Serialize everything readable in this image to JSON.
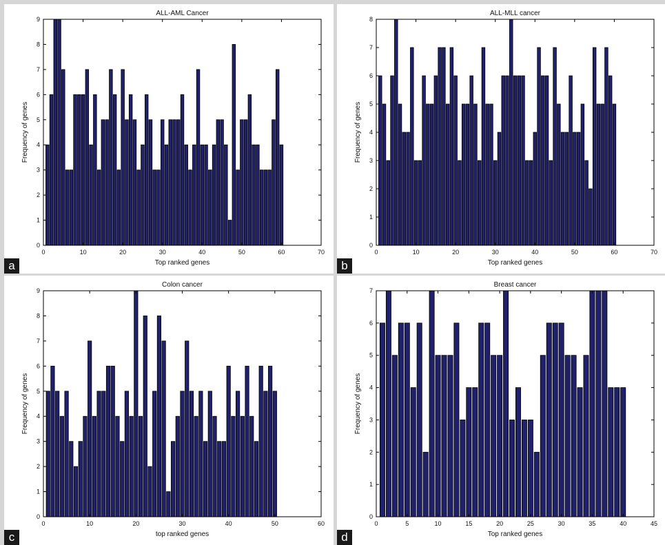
{
  "colors": {
    "bar_fill": "#20206b",
    "bar_stroke": "#000000",
    "background": "#ffffff"
  },
  "chart_data": [
    {
      "panel_label": "a",
      "type": "bar",
      "title": "ALL-AML Cancer",
      "xlabel": "Top ranked genes",
      "ylabel": "Frequency of genes",
      "xlim": [
        0,
        70
      ],
      "ylim": [
        0,
        9
      ],
      "xticks": [
        0,
        10,
        20,
        30,
        40,
        50,
        60,
        70
      ],
      "yticks": [
        0,
        1,
        2,
        3,
        4,
        5,
        6,
        7,
        8,
        9
      ],
      "x": [
        1,
        2,
        3,
        4,
        5,
        6,
        7,
        8,
        9,
        10,
        11,
        12,
        13,
        14,
        15,
        16,
        17,
        18,
        19,
        20,
        21,
        22,
        23,
        24,
        25,
        26,
        27,
        28,
        29,
        30,
        31,
        32,
        33,
        34,
        35,
        36,
        37,
        38,
        39,
        40,
        41,
        42,
        43,
        44,
        45,
        46,
        47,
        48,
        49,
        50,
        51,
        52,
        53,
        54,
        55,
        56,
        57,
        58,
        59,
        60
      ],
      "values": [
        4,
        6,
        9,
        9,
        7,
        3,
        3,
        6,
        6,
        6,
        7,
        4,
        6,
        3,
        5,
        5,
        7,
        6,
        3,
        7,
        5,
        6,
        5,
        3,
        4,
        6,
        5,
        3,
        3,
        5,
        4,
        5,
        5,
        5,
        6,
        4,
        3,
        4,
        7,
        4,
        4,
        3,
        4,
        5,
        5,
        4,
        1,
        8,
        3,
        5,
        5,
        6,
        4,
        4,
        3,
        3,
        3,
        5,
        7,
        4
      ],
      "grid": false
    },
    {
      "panel_label": "b",
      "type": "bar",
      "title": "ALL-MLL cancer",
      "xlabel": "Top ranked genes",
      "ylabel": "Frequency of genes",
      "xlim": [
        0,
        70
      ],
      "ylim": [
        0,
        8
      ],
      "xticks": [
        0,
        10,
        20,
        30,
        40,
        50,
        60,
        70
      ],
      "yticks": [
        0,
        1,
        2,
        3,
        4,
        5,
        6,
        7,
        8
      ],
      "x": [
        1,
        2,
        3,
        4,
        5,
        6,
        7,
        8,
        9,
        10,
        11,
        12,
        13,
        14,
        15,
        16,
        17,
        18,
        19,
        20,
        21,
        22,
        23,
        24,
        25,
        26,
        27,
        28,
        29,
        30,
        31,
        32,
        33,
        34,
        35,
        36,
        37,
        38,
        39,
        40,
        41,
        42,
        43,
        44,
        45,
        46,
        47,
        48,
        49,
        50,
        51,
        52,
        53,
        54,
        55,
        56,
        57,
        58,
        59,
        60
      ],
      "values": [
        6,
        5,
        3,
        6,
        8,
        5,
        4,
        4,
        7,
        3,
        3,
        6,
        5,
        5,
        6,
        7,
        7,
        5,
        7,
        6,
        3,
        5,
        5,
        6,
        5,
        3,
        7,
        5,
        5,
        3,
        4,
        6,
        6,
        8,
        6,
        6,
        6,
        3,
        3,
        4,
        7,
        6,
        6,
        3,
        7,
        5,
        4,
        4,
        6,
        4,
        4,
        5,
        3,
        2,
        7,
        5,
        5,
        7,
        6,
        5
      ],
      "grid": false
    },
    {
      "panel_label": "c",
      "type": "bar",
      "title": "Colon cancer",
      "xlabel": "top ranked genes",
      "ylabel": "Frequency of genes",
      "xlim": [
        0,
        60
      ],
      "ylim": [
        0,
        9
      ],
      "xticks": [
        0,
        10,
        20,
        30,
        40,
        50,
        60
      ],
      "yticks": [
        0,
        1,
        2,
        3,
        4,
        5,
        6,
        7,
        8,
        9
      ],
      "x": [
        1,
        2,
        3,
        4,
        5,
        6,
        7,
        8,
        9,
        10,
        11,
        12,
        13,
        14,
        15,
        16,
        17,
        18,
        19,
        20,
        21,
        22,
        23,
        24,
        25,
        26,
        27,
        28,
        29,
        30,
        31,
        32,
        33,
        34,
        35,
        36,
        37,
        38,
        39,
        40,
        41,
        42,
        43,
        44,
        45,
        46,
        47,
        48,
        49,
        50
      ],
      "values": [
        5,
        6,
        5,
        4,
        5,
        3,
        2,
        3,
        4,
        7,
        4,
        5,
        5,
        6,
        6,
        4,
        3,
        5,
        4,
        9,
        4,
        8,
        2,
        5,
        8,
        7,
        1,
        3,
        4,
        5,
        7,
        5,
        4,
        5,
        3,
        5,
        4,
        3,
        3,
        6,
        4,
        5,
        4,
        6,
        4,
        3,
        6,
        5,
        6,
        5
      ],
      "grid": false
    },
    {
      "panel_label": "d",
      "type": "bar",
      "title": "Breast cancer",
      "xlabel": "Top ranked genes",
      "ylabel": "Frequency of genes",
      "xlim": [
        0,
        45
      ],
      "ylim": [
        0,
        7
      ],
      "xticks": [
        0,
        5,
        10,
        15,
        20,
        25,
        30,
        35,
        40,
        45
      ],
      "yticks": [
        0,
        1,
        2,
        3,
        4,
        5,
        6,
        7
      ],
      "x": [
        1,
        2,
        3,
        4,
        5,
        6,
        7,
        8,
        9,
        10,
        11,
        12,
        13,
        14,
        15,
        16,
        17,
        18,
        19,
        20,
        21,
        22,
        23,
        24,
        25,
        26,
        27,
        28,
        29,
        30,
        31,
        32,
        33,
        34,
        35,
        36,
        37,
        38,
        39,
        40
      ],
      "values": [
        6,
        7,
        5,
        6,
        6,
        4,
        6,
        2,
        7,
        5,
        5,
        5,
        6,
        3,
        4,
        4,
        6,
        6,
        5,
        5,
        7,
        3,
        4,
        3,
        3,
        2,
        5,
        6,
        6,
        6,
        5,
        5,
        4,
        5,
        7,
        7,
        7,
        4,
        4,
        4
      ],
      "grid": false
    }
  ]
}
